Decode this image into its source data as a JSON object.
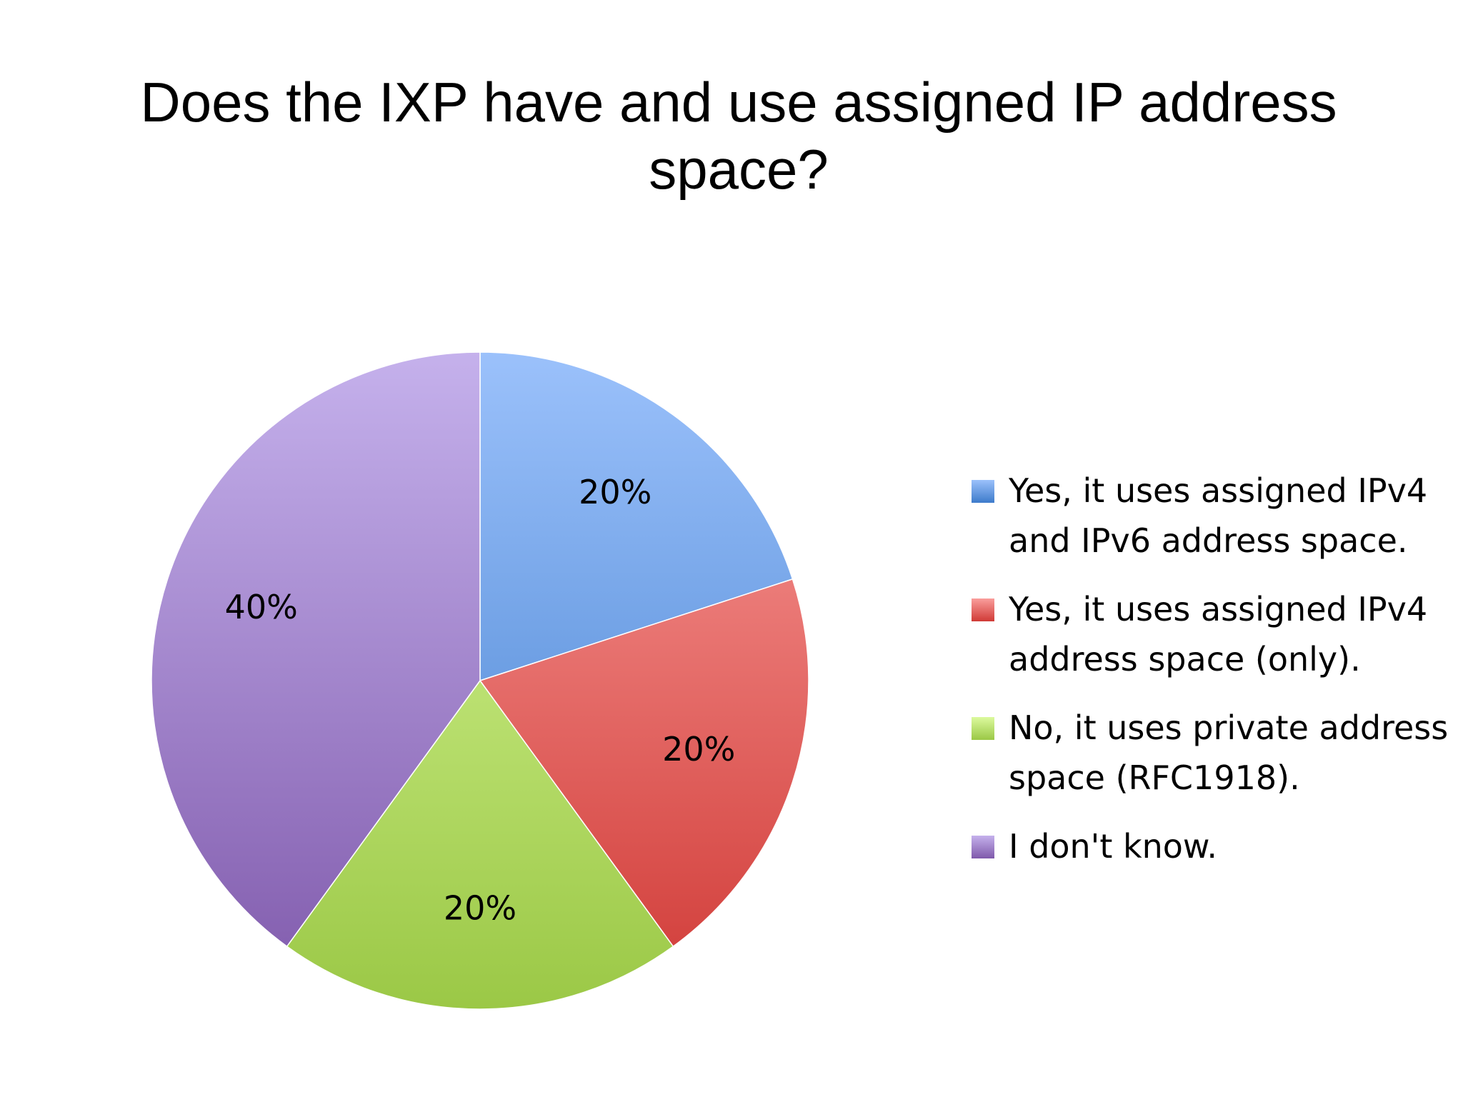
{
  "chart_data": {
    "type": "pie",
    "title": "Does the IXP have and use assigned IP address space?",
    "slices": [
      {
        "label": "Yes, it uses assigned IPv4 and IPv6 address space.",
        "value": 20,
        "display": "20%",
        "color_light": "#9bc1fb",
        "color_dark": "#3d7bcb"
      },
      {
        "label": "Yes, it uses assigned IPv4 address space (only).",
        "value": 20,
        "display": "20%",
        "color_light": "#fa9e9c",
        "color_dark": "#d03a36"
      },
      {
        "label": "No, it uses private address space (RFC1918).",
        "value": 20,
        "display": "20%",
        "color_light": "#dcfa9e",
        "color_dark": "#9bc846"
      },
      {
        "label": "I don't know.",
        "value": 40,
        "display": "40%",
        "color_light": "#c5b1ec",
        "color_dark": "#7f59ab"
      }
    ],
    "start_angle_deg": 0,
    "direction": "clockwise",
    "legend_position": "right"
  }
}
